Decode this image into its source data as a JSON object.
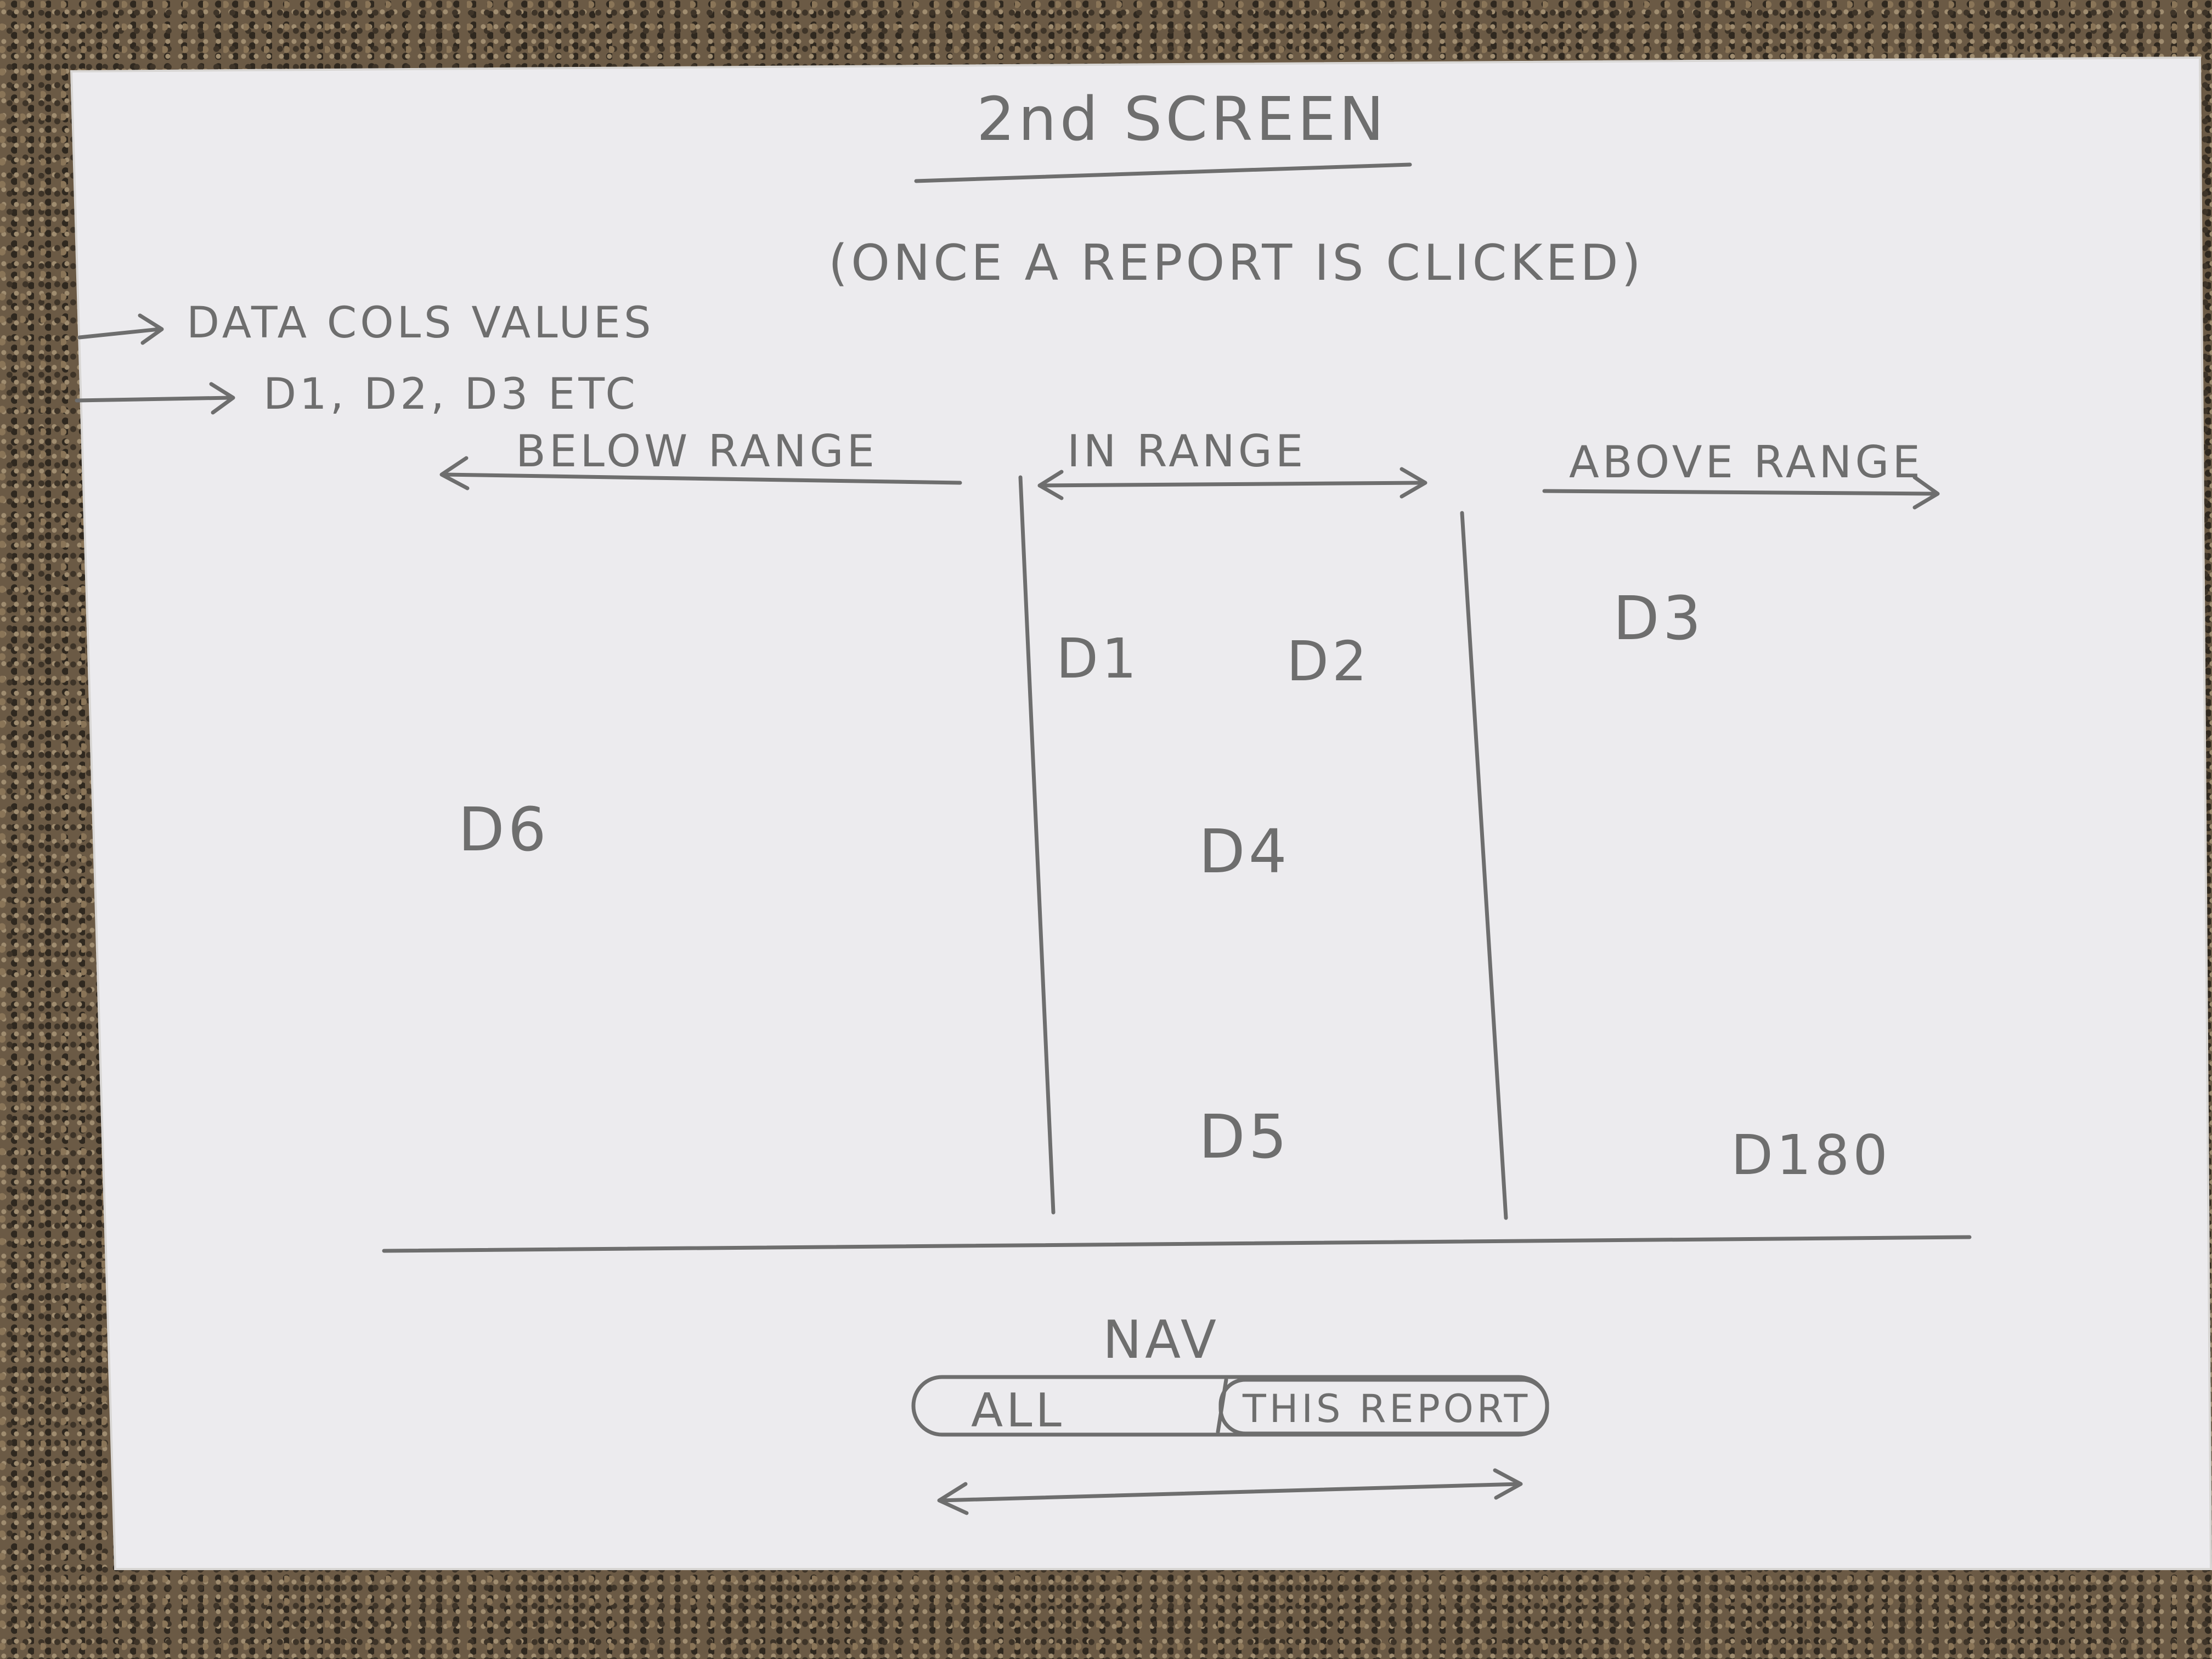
{
  "title": "2nd SCREEN",
  "subtitle": "(ONCE A REPORT IS CLICKED)",
  "notes": [
    "DATA COLS VALUES",
    "D1, D2, D3 ETC"
  ],
  "columns": {
    "below": "BELOW RANGE",
    "in": "IN RANGE",
    "above": "ABOVE RANGE"
  },
  "items": {
    "d1": "D1",
    "d2": "D2",
    "d3": "D3",
    "d4": "D4",
    "d5": "D5",
    "d6": "D6",
    "d180": "D180"
  },
  "nav": {
    "label": "NAV",
    "all": "ALL",
    "this_report": "THIS REPORT"
  },
  "colors": {
    "paper": "#ecebee",
    "ink": "#6e6e6e",
    "countertop": "#6b5a45"
  }
}
